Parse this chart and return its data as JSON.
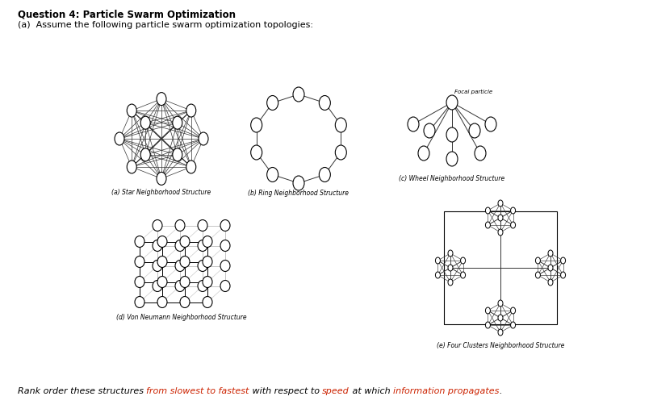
{
  "title": "Question 4: Particle Swarm Optimization",
  "subtitle": "(a)  Assume the following particle swarm optimization topologies:",
  "label_a": "(a) Star Neighborhood Structure",
  "label_b": "(b) Ring Neighborhood Structure",
  "label_c": "(c) Wheel Neighborhood Structure",
  "label_d": "(d) Von Neumann Neighborhood Structure",
  "label_e": "(e) Four Clusters Neighborhood Structure",
  "focal_label": "Focal particle",
  "bg_color": "#ffffff",
  "bottom_parts": [
    [
      "Rank order these structures ",
      "#000000"
    ],
    [
      "from slowest to fastest",
      "#cc2200"
    ],
    [
      " with respect to ",
      "#000000"
    ],
    [
      "speed",
      "#cc2200"
    ],
    [
      " at which ",
      "#000000"
    ],
    [
      "information propagates",
      "#cc2200"
    ],
    [
      ".",
      "#000000"
    ]
  ]
}
